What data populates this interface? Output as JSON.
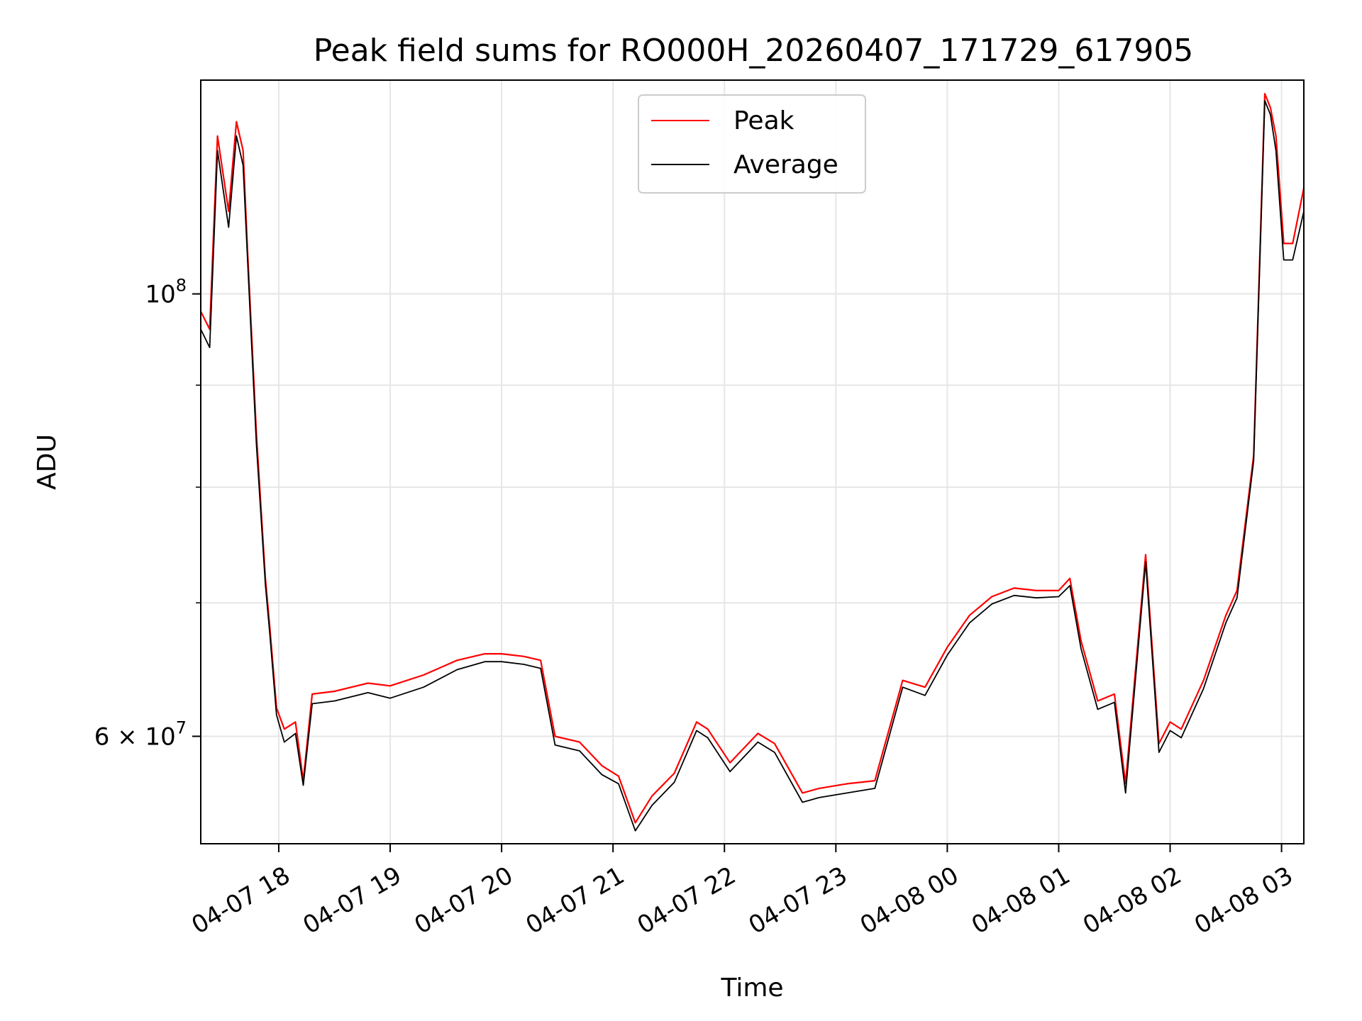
{
  "chart_data": {
    "type": "line",
    "title": "Peak field sums for RO000H_20260407_171729_617905",
    "xlabel": "Time",
    "ylabel": "ADU",
    "yscale": "log",
    "grid": true,
    "legend_position": "upper center",
    "xlim": [
      17.3,
      27.2
    ],
    "ylim": [
      53000000,
      128000000
    ],
    "x_ticks": [
      {
        "value": 18,
        "label": "04-07 18"
      },
      {
        "value": 19,
        "label": "04-07 19"
      },
      {
        "value": 20,
        "label": "04-07 20"
      },
      {
        "value": 21,
        "label": "04-07 21"
      },
      {
        "value": 22,
        "label": "04-07 22"
      },
      {
        "value": 23,
        "label": "04-07 23"
      },
      {
        "value": 24,
        "label": "04-08 00"
      },
      {
        "value": 25,
        "label": "04-08 01"
      },
      {
        "value": 26,
        "label": "04-08 02"
      },
      {
        "value": 27,
        "label": "04-08 03"
      }
    ],
    "y_major_ticks": [
      {
        "value": 60000000,
        "base": "6 × 10",
        "exp": "7"
      },
      {
        "value": 100000000,
        "base": "10",
        "exp": "8"
      }
    ],
    "y_minor_ticks": [
      70000000,
      80000000,
      90000000
    ],
    "x": [
      17.3,
      17.38,
      17.45,
      17.55,
      17.62,
      17.68,
      17.72,
      17.8,
      17.88,
      17.92,
      17.98,
      18.05,
      18.15,
      18.22,
      18.3,
      18.5,
      18.8,
      19.0,
      19.3,
      19.6,
      19.85,
      20.0,
      20.2,
      20.35,
      20.48,
      20.7,
      20.9,
      21.05,
      21.2,
      21.35,
      21.55,
      21.75,
      21.85,
      22.05,
      22.3,
      22.45,
      22.7,
      22.85,
      23.1,
      23.35,
      23.6,
      23.8,
      24.0,
      24.2,
      24.4,
      24.6,
      24.8,
      25.0,
      25.1,
      25.2,
      25.35,
      25.5,
      25.6,
      25.78,
      25.9,
      26.0,
      26.1,
      26.3,
      26.5,
      26.6,
      26.75,
      26.85,
      26.9,
      26.95,
      27.02,
      27.1,
      27.2
    ],
    "series": [
      {
        "name": "Peak",
        "color": "#ff0000",
        "values": [
          98000000,
          96000000,
          120000000,
          110000000,
          122000000,
          118000000,
          105000000,
          85000000,
          72000000,
          68000000,
          62000000,
          60500000,
          61000000,
          57000000,
          63000000,
          63200000,
          63800000,
          63600000,
          64400000,
          65500000,
          66000000,
          66000000,
          65800000,
          65500000,
          60000000,
          59600000,
          58000000,
          57300000,
          54300000,
          56000000,
          57500000,
          61000000,
          60500000,
          58200000,
          60200000,
          59500000,
          56200000,
          56500000,
          56800000,
          57000000,
          64000000,
          63500000,
          66500000,
          69000000,
          70500000,
          71200000,
          71000000,
          71000000,
          72000000,
          67000000,
          62500000,
          63000000,
          56800000,
          74000000,
          59500000,
          61000000,
          60500000,
          64000000,
          69000000,
          71000000,
          83000000,
          126000000,
          124000000,
          120000000,
          106000000,
          106000000,
          113000000
        ]
      },
      {
        "name": "Average",
        "color": "#000000",
        "values": [
          96000000,
          94000000,
          118000000,
          108000000,
          120000000,
          116000000,
          104000000,
          84000000,
          71500000,
          67500000,
          61500000,
          59600000,
          60200000,
          56700000,
          62300000,
          62500000,
          63100000,
          62700000,
          63500000,
          64800000,
          65400000,
          65400000,
          65200000,
          64900000,
          59400000,
          59000000,
          57400000,
          56800000,
          53800000,
          55400000,
          56900000,
          60400000,
          59900000,
          57600000,
          59600000,
          58900000,
          55600000,
          55900000,
          56200000,
          56500000,
          63500000,
          62900000,
          65900000,
          68400000,
          69900000,
          70600000,
          70400000,
          70500000,
          71400000,
          66400000,
          61900000,
          62400000,
          56200000,
          73400000,
          58900000,
          60400000,
          59900000,
          63400000,
          68400000,
          70400000,
          82500000,
          125000000,
          123000000,
          118000000,
          104000000,
          104000000,
          110000000
        ]
      }
    ]
  }
}
